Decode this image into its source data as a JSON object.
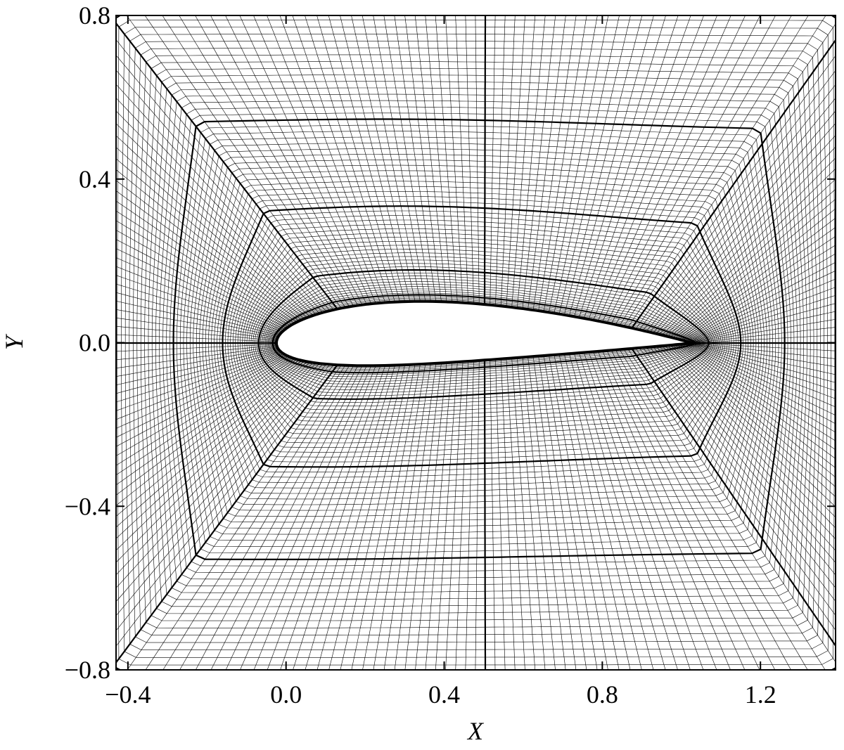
{
  "chart_data": {
    "type": "mesh",
    "x_label": "X",
    "y_label": "Y",
    "xlim": [
      -0.43,
      1.39
    ],
    "ylim": [
      -0.8,
      0.8
    ],
    "xticks": [
      {
        "value": -0.4,
        "label": "−0.4"
      },
      {
        "value": 0,
        "label": "0.0"
      },
      0.4,
      0.8,
      1.2
    ],
    "yticks": [
      {
        "value": -0.8,
        "label": "−0.8"
      },
      {
        "value": -0.4,
        "label": "−0.4"
      },
      {
        "value": 0,
        "label": "0.0"
      },
      0.4,
      0.8
    ],
    "color": "#000000"
  }
}
